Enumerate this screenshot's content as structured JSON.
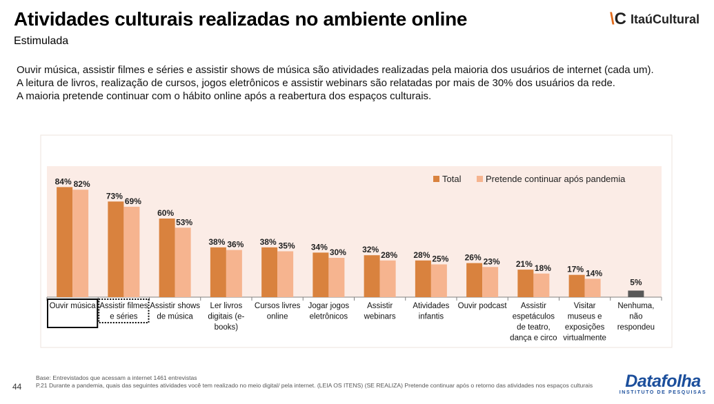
{
  "header": {
    "title": "Atividades culturais realizadas no ambiente online",
    "subtitle": "Estimulada",
    "logo_text": "ItaúCultural"
  },
  "intro": {
    "paragraph1": "Ouvir música, assistir filmes e séries e assistir shows de música são atividades realizadas pela maioria dos usuários de internet (cada um). A leitura de livros, realização de cursos, jogos eletrônicos e assistir webinars são relatadas por mais de 30% dos usuários da rede.",
    "paragraph2": "A maioria pretende continuar com o hábito online após a reabertura dos espaços culturais."
  },
  "chart_data": {
    "type": "bar",
    "categories": [
      [
        "Ouvir música"
      ],
      [
        "Assistir filmes",
        "e séries"
      ],
      [
        "Assistir shows",
        "de música"
      ],
      [
        "Ler livros",
        "digitais (e-",
        "books)"
      ],
      [
        "Cursos livres",
        "online"
      ],
      [
        "Jogar jogos",
        "eletrônicos"
      ],
      [
        "Assistir",
        "webinars"
      ],
      [
        "Atividades",
        "infantis"
      ],
      [
        "Ouvir podcast"
      ],
      [
        "Assistir",
        "espetáculos",
        "de teatro,",
        "dança e circo"
      ],
      [
        "Visitar",
        "museus e",
        "exposições",
        "virtualmente"
      ],
      [
        "Nenhuma,",
        "não",
        "respondeu"
      ]
    ],
    "series": [
      {
        "name": "Total",
        "color": "#d9823e",
        "values": [
          84,
          73,
          60,
          38,
          38,
          34,
          32,
          28,
          26,
          21,
          17,
          null
        ]
      },
      {
        "name": "Pretende continuar após pandemia",
        "color": "#f6b48f",
        "values": [
          82,
          69,
          53,
          36,
          35,
          30,
          28,
          25,
          23,
          18,
          14,
          null
        ]
      }
    ],
    "extra_bar": {
      "category_index": 11,
      "value": 5,
      "color": "#595959"
    },
    "value_suffix": "%",
    "legend_position": "top-right",
    "plot_background": "#fbece6",
    "ylim": [
      0,
      100
    ]
  },
  "footer": {
    "page_number": "44",
    "base_note": "Base: Entrevistados que acessam a internet 1461 entrevistas",
    "question_note": "P.21 Durante a pandemia, quais das seguintes atividades você tem realizado no meio digital/ pela internet.  (LEIA OS ITENS) (SE REALIZA) Pretende continuar após o retorno das atividades nos espaços culturais",
    "brand_name": "Datafolha",
    "brand_sub": "INSTITUTO DE PESQUISAS"
  }
}
